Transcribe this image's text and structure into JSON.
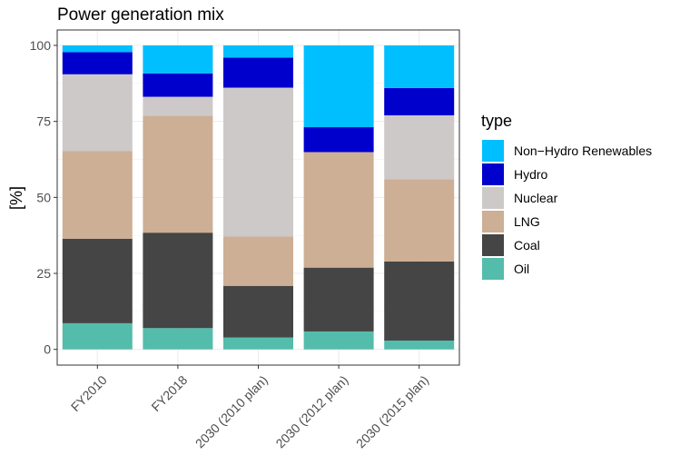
{
  "chart_data": {
    "type": "bar",
    "stacked": true,
    "title": "Power generation mix",
    "xlabel": "",
    "ylabel": "[%]",
    "ylim": [
      0,
      100
    ],
    "yticks": [
      0,
      25,
      50,
      75,
      100
    ],
    "categories": [
      "FY2010",
      "FY2018",
      "2030 (2010 plan)",
      "2030 (2012 plan)",
      "2030 (2015 plan)"
    ],
    "legend_title": "type",
    "legend_position": "right",
    "grid": true,
    "series": [
      {
        "name": "Oil",
        "color": "#54BCAB",
        "values": [
          8.6,
          7.0,
          3.9,
          5.9,
          2.9
        ]
      },
      {
        "name": "Coal",
        "color": "#454545",
        "values": [
          27.8,
          31.4,
          17.0,
          21.0,
          26.0
        ]
      },
      {
        "name": "LNG",
        "color": "#CDAF95",
        "values": [
          28.9,
          38.5,
          16.2,
          38.0,
          27.1
        ]
      },
      {
        "name": "Nuclear",
        "color": "#CDC9C9",
        "values": [
          25.2,
          6.2,
          49.0,
          0.0,
          21.0
        ]
      },
      {
        "name": "Hydro",
        "color": "#0000CD",
        "values": [
          7.3,
          7.7,
          9.9,
          8.2,
          9.0
        ]
      },
      {
        "name": "Non−Hydro Renewables",
        "color": "#00BFFF",
        "values": [
          2.2,
          9.2,
          4.0,
          26.9,
          14.0
        ]
      }
    ]
  }
}
